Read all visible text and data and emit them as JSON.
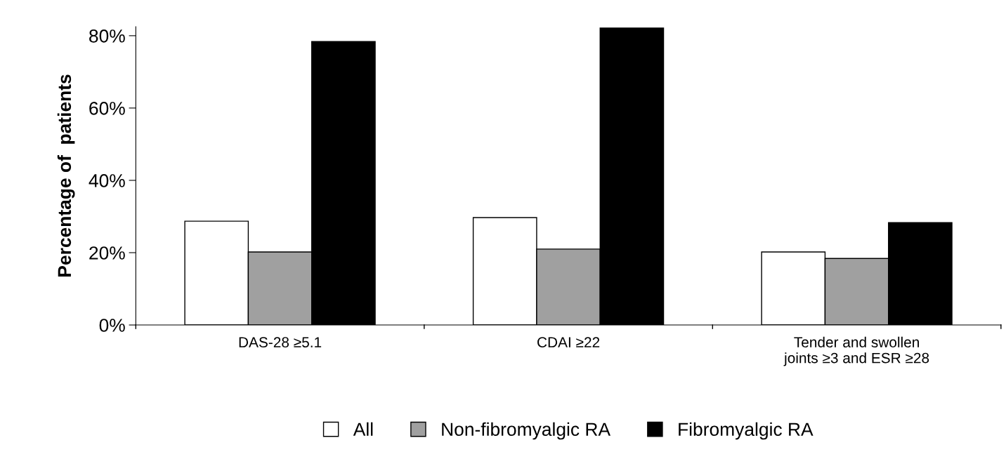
{
  "chart_data": {
    "type": "bar",
    "ylabel": "Percentage of  patients",
    "categories": [
      "DAS-28 ≥5.1",
      "CDAI ≥22",
      "Tender and swollen\njoints ≥3 and ESR ≥28"
    ],
    "series": [
      {
        "name": "All",
        "color": "#ffffff",
        "values": [
          28.7,
          29.7,
          20.2
        ]
      },
      {
        "name": "Non-fibromyalgic RA",
        "color": "#a0a0a0",
        "values": [
          20.2,
          21.0,
          18.4
        ]
      },
      {
        "name": "Fibromyalgic RA",
        "color": "#000000",
        "values": [
          78.4,
          82.1,
          28.3
        ]
      }
    ],
    "ylim": [
      0,
      82.5
    ],
    "yticks": [
      {
        "value": 0,
        "label": "0%"
      },
      {
        "value": 20,
        "label": "20%"
      },
      {
        "value": 40,
        "label": "40%"
      },
      {
        "value": 60,
        "label": "60%"
      },
      {
        "value": 80,
        "label": "80%"
      }
    ],
    "grid": false,
    "legend": "bottom"
  }
}
